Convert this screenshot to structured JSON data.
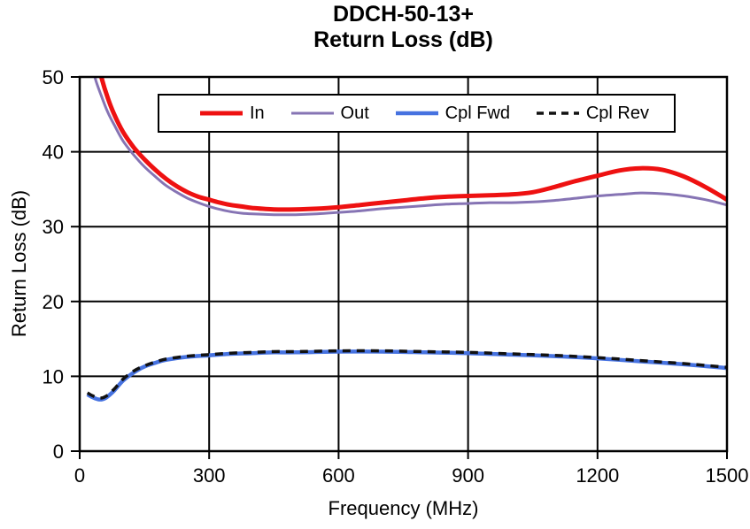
{
  "chart_data": {
    "type": "line",
    "title": "DDCH-50-13+",
    "subtitle": "Return Loss (dB)",
    "xlabel": "Frequency (MHz)",
    "ylabel": "Return Loss (dB)",
    "xlim": [
      0,
      1500
    ],
    "ylim": [
      0,
      50
    ],
    "xticks": [
      0,
      300,
      600,
      900,
      1200,
      1500
    ],
    "yticks": [
      0,
      10,
      20,
      30,
      40,
      50
    ],
    "grid": true,
    "legend_position": "top-inside",
    "axis_color": "#000000",
    "background_color": "#ffffff",
    "series": [
      {
        "name": "In",
        "color": "#ee1111",
        "width": 5,
        "dash": null,
        "points": [
          [
            38,
            53
          ],
          [
            50,
            50
          ],
          [
            65,
            47.2
          ],
          [
            80,
            45
          ],
          [
            100,
            42.7
          ],
          [
            125,
            40.6
          ],
          [
            150,
            39.0
          ],
          [
            175,
            37.6
          ],
          [
            200,
            36.4
          ],
          [
            225,
            35.4
          ],
          [
            250,
            34.6
          ],
          [
            275,
            34.0
          ],
          [
            300,
            33.6
          ],
          [
            325,
            33.2
          ],
          [
            350,
            32.9
          ],
          [
            375,
            32.7
          ],
          [
            400,
            32.5
          ],
          [
            450,
            32.3
          ],
          [
            500,
            32.3
          ],
          [
            550,
            32.4
          ],
          [
            600,
            32.6
          ],
          [
            650,
            32.9
          ],
          [
            700,
            33.2
          ],
          [
            750,
            33.5
          ],
          [
            800,
            33.8
          ],
          [
            850,
            34.0
          ],
          [
            900,
            34.1
          ],
          [
            950,
            34.2
          ],
          [
            1000,
            34.3
          ],
          [
            1050,
            34.6
          ],
          [
            1100,
            35.3
          ],
          [
            1150,
            36.1
          ],
          [
            1200,
            36.8
          ],
          [
            1250,
            37.5
          ],
          [
            1300,
            37.8
          ],
          [
            1350,
            37.6
          ],
          [
            1400,
            36.7
          ],
          [
            1450,
            35.3
          ],
          [
            1500,
            33.6
          ]
        ]
      },
      {
        "name": "Out",
        "color": "#8674b4",
        "width": 3,
        "dash": null,
        "points": [
          [
            25,
            53
          ],
          [
            35,
            50
          ],
          [
            50,
            47.5
          ],
          [
            65,
            45.3
          ],
          [
            80,
            43.6
          ],
          [
            100,
            41.5
          ],
          [
            125,
            39.6
          ],
          [
            150,
            38.0
          ],
          [
            175,
            36.7
          ],
          [
            200,
            35.5
          ],
          [
            225,
            34.6
          ],
          [
            250,
            33.8
          ],
          [
            275,
            33.2
          ],
          [
            300,
            32.7
          ],
          [
            325,
            32.3
          ],
          [
            350,
            32.0
          ],
          [
            375,
            31.8
          ],
          [
            400,
            31.7
          ],
          [
            450,
            31.6
          ],
          [
            500,
            31.6
          ],
          [
            550,
            31.7
          ],
          [
            600,
            31.9
          ],
          [
            650,
            32.1
          ],
          [
            700,
            32.4
          ],
          [
            750,
            32.6
          ],
          [
            800,
            32.8
          ],
          [
            850,
            33.0
          ],
          [
            900,
            33.1
          ],
          [
            950,
            33.2
          ],
          [
            1000,
            33.2
          ],
          [
            1050,
            33.3
          ],
          [
            1100,
            33.5
          ],
          [
            1150,
            33.8
          ],
          [
            1200,
            34.1
          ],
          [
            1250,
            34.3
          ],
          [
            1300,
            34.5
          ],
          [
            1350,
            34.4
          ],
          [
            1400,
            34.1
          ],
          [
            1450,
            33.6
          ],
          [
            1500,
            32.9
          ]
        ]
      },
      {
        "name": "Cpl Fwd",
        "color": "#4672e0",
        "width": 4.5,
        "dash": null,
        "points": [
          [
            18,
            7.6
          ],
          [
            30,
            7.2
          ],
          [
            45,
            6.9
          ],
          [
            60,
            7.1
          ],
          [
            80,
            8.1
          ],
          [
            100,
            9.4
          ],
          [
            125,
            10.5
          ],
          [
            150,
            11.3
          ],
          [
            175,
            11.8
          ],
          [
            200,
            12.2
          ],
          [
            250,
            12.6
          ],
          [
            300,
            12.8
          ],
          [
            350,
            13.0
          ],
          [
            400,
            13.1
          ],
          [
            450,
            13.2
          ],
          [
            500,
            13.2
          ],
          [
            600,
            13.3
          ],
          [
            700,
            13.3
          ],
          [
            800,
            13.2
          ],
          [
            900,
            13.1
          ],
          [
            1000,
            12.9
          ],
          [
            1100,
            12.7
          ],
          [
            1200,
            12.4
          ],
          [
            1300,
            12.0
          ],
          [
            1400,
            11.6
          ],
          [
            1500,
            11.1
          ]
        ]
      },
      {
        "name": "Cpl Rev",
        "color": "#111111",
        "width": 3.5,
        "dash": "9,7",
        "points": [
          [
            18,
            7.8
          ],
          [
            30,
            7.4
          ],
          [
            45,
            7.1
          ],
          [
            60,
            7.3
          ],
          [
            80,
            8.3
          ],
          [
            100,
            9.6
          ],
          [
            125,
            10.7
          ],
          [
            150,
            11.4
          ],
          [
            175,
            11.9
          ],
          [
            200,
            12.3
          ],
          [
            250,
            12.7
          ],
          [
            300,
            12.9
          ],
          [
            350,
            13.1
          ],
          [
            400,
            13.2
          ],
          [
            450,
            13.3
          ],
          [
            500,
            13.3
          ],
          [
            600,
            13.4
          ],
          [
            700,
            13.4
          ],
          [
            800,
            13.3
          ],
          [
            900,
            13.2
          ],
          [
            1000,
            13.0
          ],
          [
            1100,
            12.8
          ],
          [
            1200,
            12.5
          ],
          [
            1300,
            12.1
          ],
          [
            1400,
            11.7
          ],
          [
            1500,
            11.2
          ]
        ]
      }
    ]
  }
}
